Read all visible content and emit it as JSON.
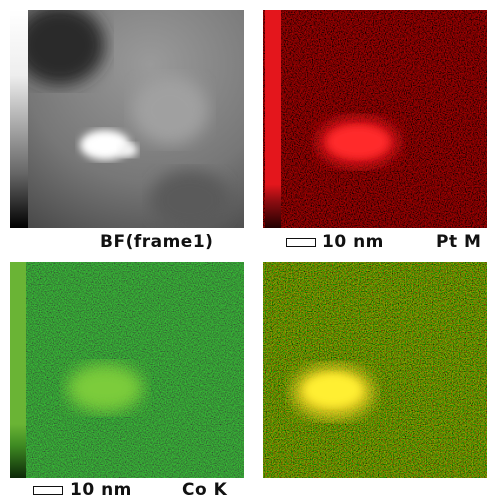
{
  "panels": {
    "bf": {
      "label": "BF(frame1)"
    },
    "pt": {
      "scale_bar": "10 nm",
      "label": "Pt M"
    },
    "co": {
      "scale_bar": "10 nm",
      "label": "Co K"
    }
  }
}
